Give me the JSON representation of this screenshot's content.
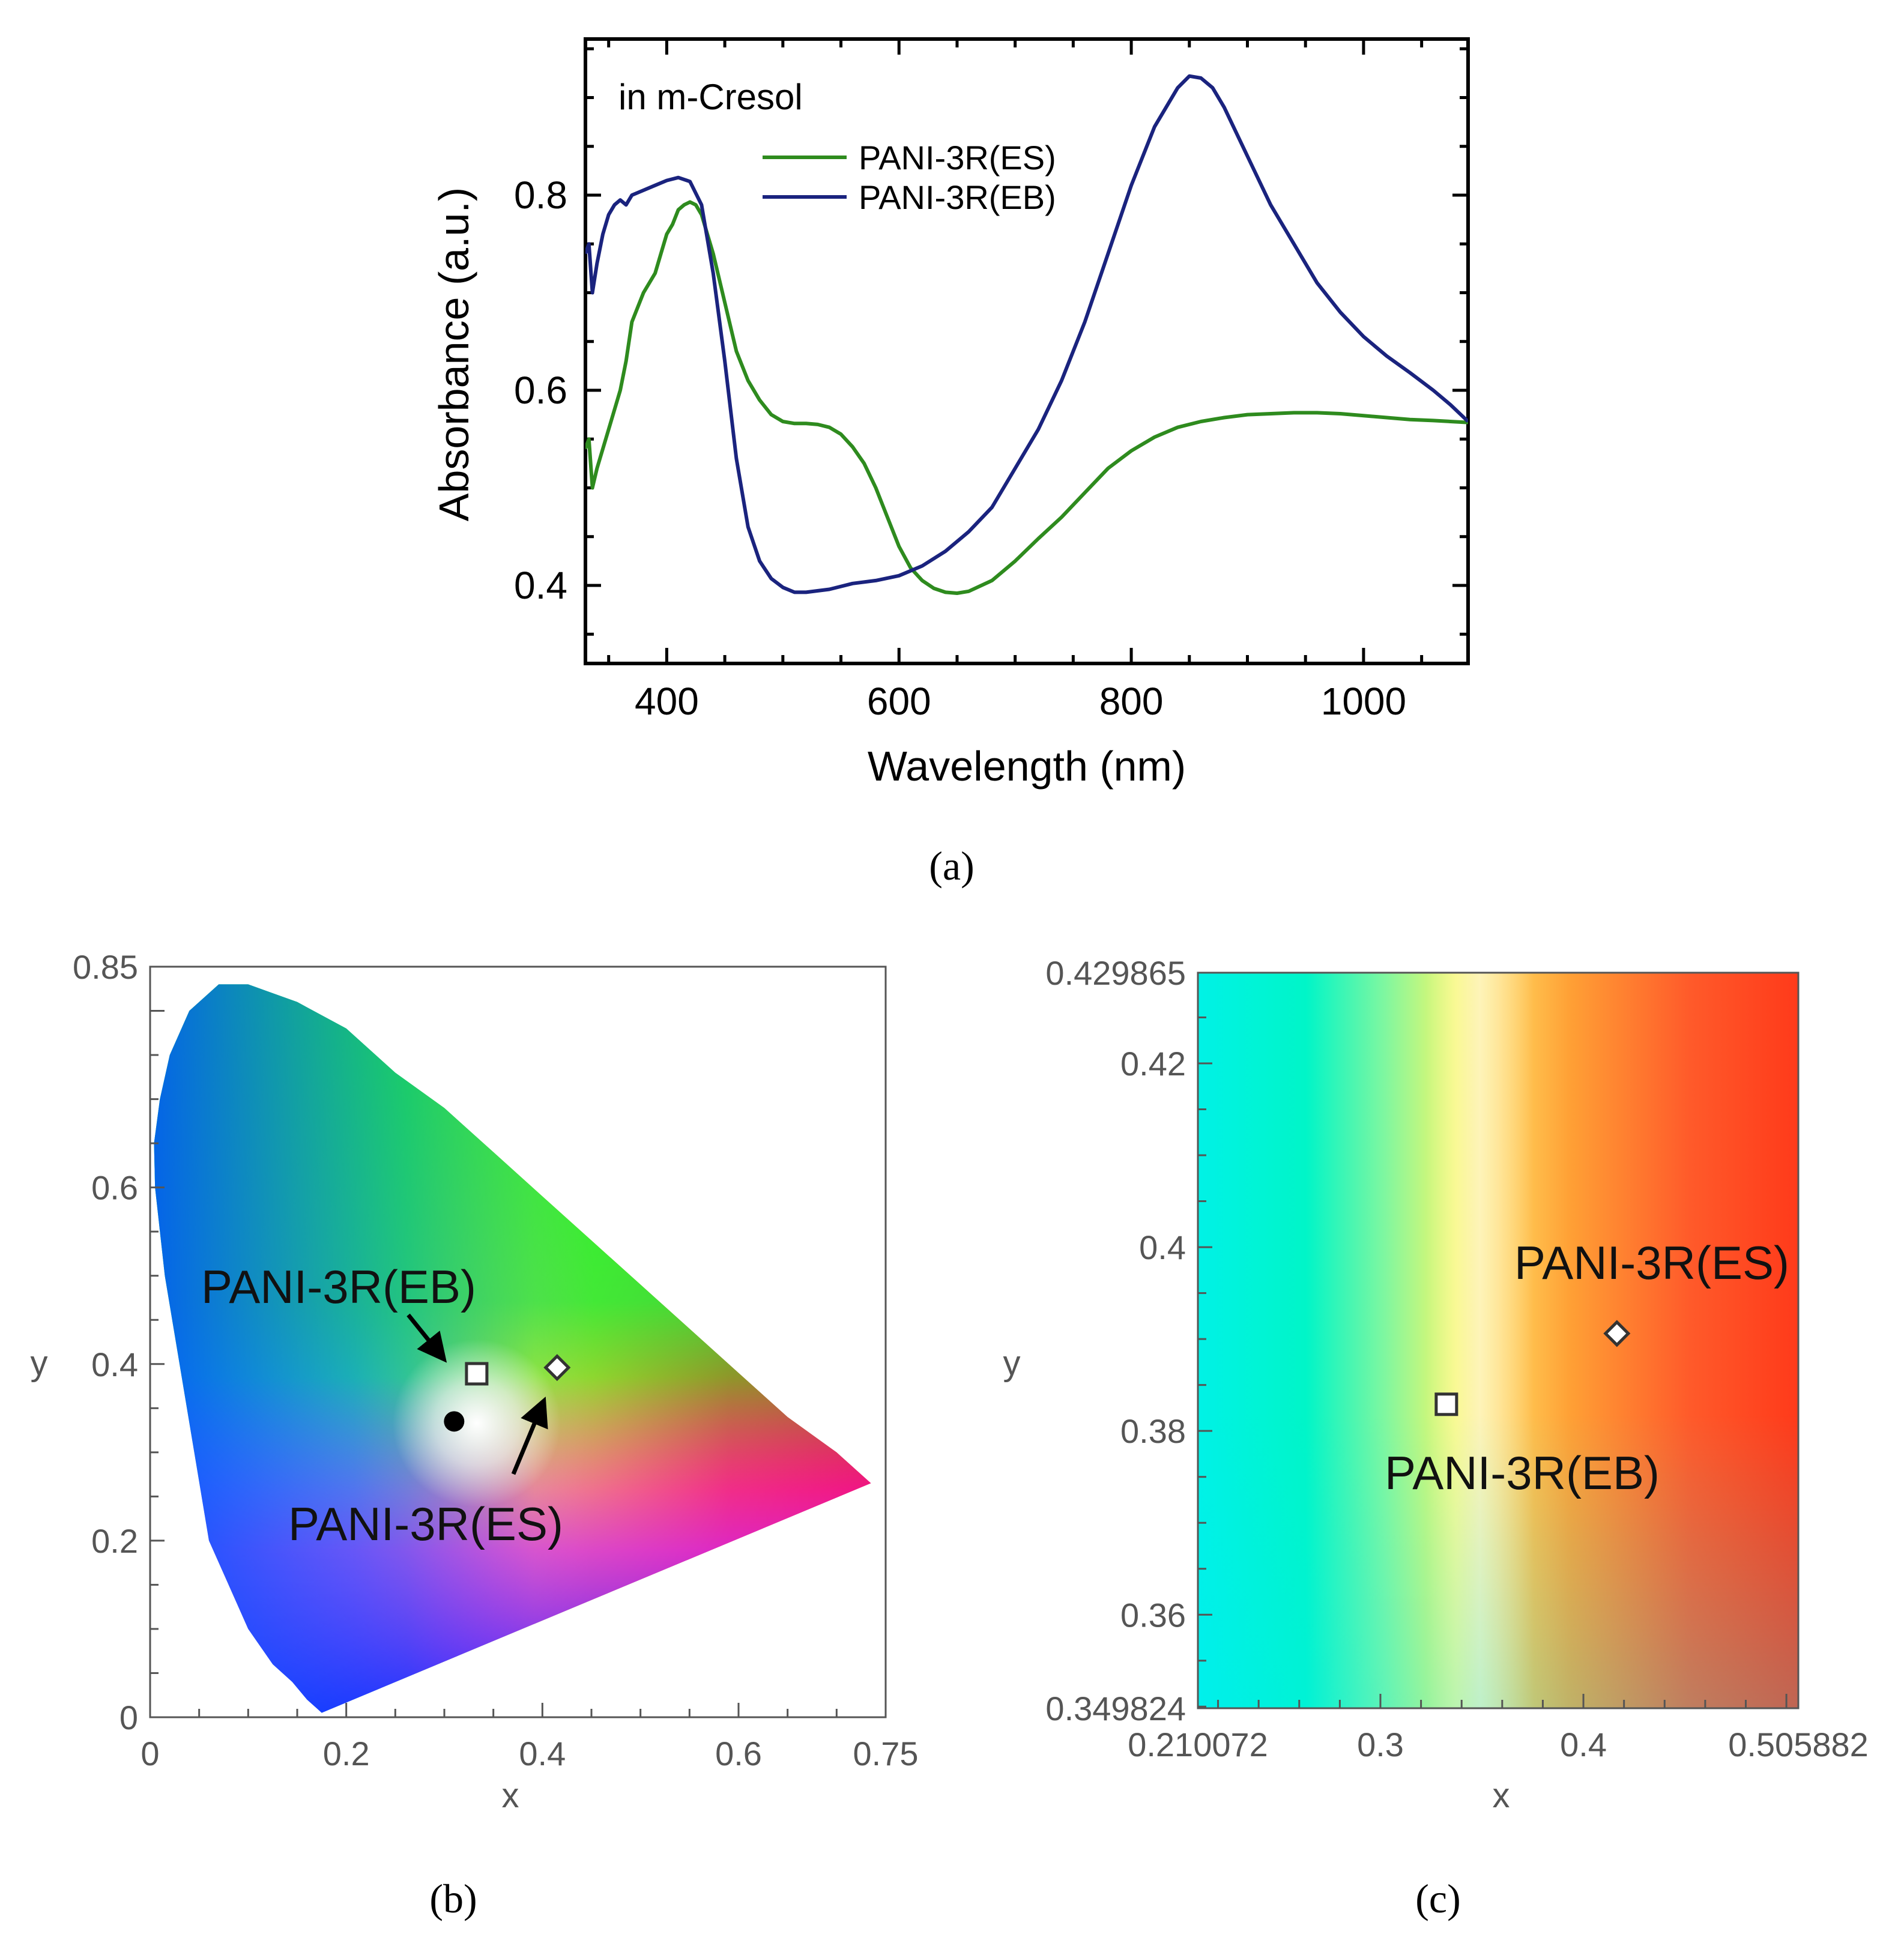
{
  "chart_data": [
    {
      "panel": "a",
      "type": "line",
      "title": "",
      "annotation": "in m-Cresol",
      "xlabel": "Wavelength (nm)",
      "ylabel": "Absorbance (a.u.)",
      "xlim": [
        330,
        1090
      ],
      "ylim": [
        0.32,
        0.96
      ],
      "xticks": [
        400,
        600,
        800,
        1000
      ],
      "xtick_labels": [
        "400",
        "600",
        "800",
        "1000"
      ],
      "yticks": [
        0.4,
        0.6,
        0.8
      ],
      "ytick_labels": [
        "0.4",
        "0.6",
        "0.8"
      ],
      "legend_position": "top-center",
      "caption": "(a)",
      "series": [
        {
          "name": "PANI-3R(ES)",
          "color": "#2e8b1e",
          "points": [
            [
              330,
              0.54
            ],
            [
              333,
              0.55
            ],
            [
              336,
              0.5
            ],
            [
              340,
              0.52
            ],
            [
              350,
              0.56
            ],
            [
              360,
              0.6
            ],
            [
              365,
              0.63
            ],
            [
              370,
              0.67
            ],
            [
              380,
              0.7
            ],
            [
              390,
              0.72
            ],
            [
              395,
              0.74
            ],
            [
              400,
              0.76
            ],
            [
              405,
              0.77
            ],
            [
              410,
              0.785
            ],
            [
              415,
              0.79
            ],
            [
              420,
              0.793
            ],
            [
              425,
              0.79
            ],
            [
              430,
              0.78
            ],
            [
              440,
              0.74
            ],
            [
              450,
              0.69
            ],
            [
              460,
              0.64
            ],
            [
              470,
              0.61
            ],
            [
              480,
              0.59
            ],
            [
              490,
              0.575
            ],
            [
              500,
              0.568
            ],
            [
              510,
              0.566
            ],
            [
              520,
              0.566
            ],
            [
              530,
              0.565
            ],
            [
              540,
              0.562
            ],
            [
              550,
              0.555
            ],
            [
              560,
              0.542
            ],
            [
              570,
              0.525
            ],
            [
              580,
              0.5
            ],
            [
              590,
              0.47
            ],
            [
              600,
              0.44
            ],
            [
              610,
              0.418
            ],
            [
              620,
              0.405
            ],
            [
              630,
              0.397
            ],
            [
              640,
              0.393
            ],
            [
              650,
              0.392
            ],
            [
              660,
              0.394
            ],
            [
              680,
              0.405
            ],
            [
              700,
              0.425
            ],
            [
              720,
              0.448
            ],
            [
              740,
              0.47
            ],
            [
              760,
              0.495
            ],
            [
              780,
              0.52
            ],
            [
              800,
              0.538
            ],
            [
              820,
              0.552
            ],
            [
              840,
              0.562
            ],
            [
              860,
              0.568
            ],
            [
              880,
              0.572
            ],
            [
              900,
              0.575
            ],
            [
              920,
              0.576
            ],
            [
              940,
              0.577
            ],
            [
              960,
              0.577
            ],
            [
              980,
              0.576
            ],
            [
              1000,
              0.574
            ],
            [
              1020,
              0.572
            ],
            [
              1040,
              0.57
            ],
            [
              1060,
              0.569
            ],
            [
              1090,
              0.567
            ]
          ]
        },
        {
          "name": "PANI-3R(EB)",
          "color": "#1a237e",
          "points": [
            [
              330,
              0.74
            ],
            [
              333,
              0.75
            ],
            [
              336,
              0.7
            ],
            [
              340,
              0.73
            ],
            [
              345,
              0.76
            ],
            [
              350,
              0.78
            ],
            [
              355,
              0.79
            ],
            [
              360,
              0.795
            ],
            [
              365,
              0.79
            ],
            [
              370,
              0.8
            ],
            [
              380,
              0.805
            ],
            [
              390,
              0.81
            ],
            [
              400,
              0.815
            ],
            [
              410,
              0.818
            ],
            [
              420,
              0.814
            ],
            [
              430,
              0.79
            ],
            [
              440,
              0.72
            ],
            [
              450,
              0.63
            ],
            [
              460,
              0.53
            ],
            [
              470,
              0.46
            ],
            [
              480,
              0.425
            ],
            [
              490,
              0.407
            ],
            [
              500,
              0.398
            ],
            [
              510,
              0.393
            ],
            [
              520,
              0.393
            ],
            [
              540,
              0.396
            ],
            [
              560,
              0.402
            ],
            [
              580,
              0.405
            ],
            [
              600,
              0.41
            ],
            [
              620,
              0.42
            ],
            [
              640,
              0.435
            ],
            [
              660,
              0.455
            ],
            [
              680,
              0.48
            ],
            [
              700,
              0.52
            ],
            [
              720,
              0.56
            ],
            [
              740,
              0.61
            ],
            [
              760,
              0.67
            ],
            [
              780,
              0.74
            ],
            [
              800,
              0.81
            ],
            [
              820,
              0.87
            ],
            [
              840,
              0.91
            ],
            [
              850,
              0.922
            ],
            [
              860,
              0.92
            ],
            [
              870,
              0.91
            ],
            [
              880,
              0.89
            ],
            [
              900,
              0.84
            ],
            [
              920,
              0.79
            ],
            [
              940,
              0.75
            ],
            [
              960,
              0.71
            ],
            [
              980,
              0.68
            ],
            [
              1000,
              0.655
            ],
            [
              1020,
              0.635
            ],
            [
              1040,
              0.618
            ],
            [
              1060,
              0.6
            ],
            [
              1075,
              0.585
            ],
            [
              1090,
              0.568
            ]
          ]
        }
      ]
    },
    {
      "panel": "b",
      "type": "scatter",
      "title": "",
      "xlabel": "x",
      "ylabel": "y",
      "xlim": [
        0,
        0.75
      ],
      "ylim": [
        0,
        0.85
      ],
      "xticks": [
        0,
        0.2,
        0.4,
        0.6,
        0.75
      ],
      "xtick_labels": [
        "0",
        "0.2",
        "0.4",
        "0.6",
        "0.75"
      ],
      "yticks": [
        0,
        0.2,
        0.4,
        0.6,
        0.85
      ],
      "ytick_labels": [
        "0",
        "0.2",
        "0.4",
        "0.6",
        "0.85"
      ],
      "background": "CIE 1931 chromaticity diagram",
      "caption": "(b)",
      "points": [
        {
          "label": "PANI-3R(EB)",
          "marker": "open-square",
          "x": 0.333,
          "y": 0.389
        },
        {
          "label": "PANI-3R(ES)",
          "marker": "open-diamond",
          "x": 0.415,
          "y": 0.396
        },
        {
          "label": "",
          "marker": "filled-circle",
          "x": 0.31,
          "y": 0.335
        }
      ],
      "annotations": [
        {
          "text": "PANI-3R(EB)",
          "x": 0.2,
          "y": 0.48
        },
        {
          "text": "PANI-3R(ES)",
          "x": 0.36,
          "y": 0.22
        }
      ]
    },
    {
      "panel": "c",
      "type": "scatter",
      "title": "",
      "xlabel": "x",
      "ylabel": "y",
      "xlim": [
        0.210072,
        0.505882
      ],
      "ylim": [
        0.349824,
        0.429865
      ],
      "xticks": [
        0.210072,
        0.3,
        0.4,
        0.505882
      ],
      "xtick_labels": [
        "0.210072",
        "0.3",
        "0.4",
        "0.505882"
      ],
      "yticks": [
        0.349824,
        0.36,
        0.38,
        0.4,
        0.42,
        0.429865
      ],
      "ytick_labels": [
        "0.349824",
        "0.36",
        "0.38",
        "0.4",
        "0.42",
        "0.429865"
      ],
      "background": "zoomed chromaticity region",
      "caption": "(c)",
      "points": [
        {
          "label": "PANI-3R(ES)",
          "marker": "open-diamond",
          "x": 0.4165,
          "y": 0.3906
        },
        {
          "label": "PANI-3R(EB)",
          "marker": "open-square",
          "x": 0.3325,
          "y": 0.3829
        }
      ]
    }
  ],
  "figure": {
    "caption_a": "(a)",
    "caption_b": "(b)",
    "caption_c": "(c)"
  }
}
